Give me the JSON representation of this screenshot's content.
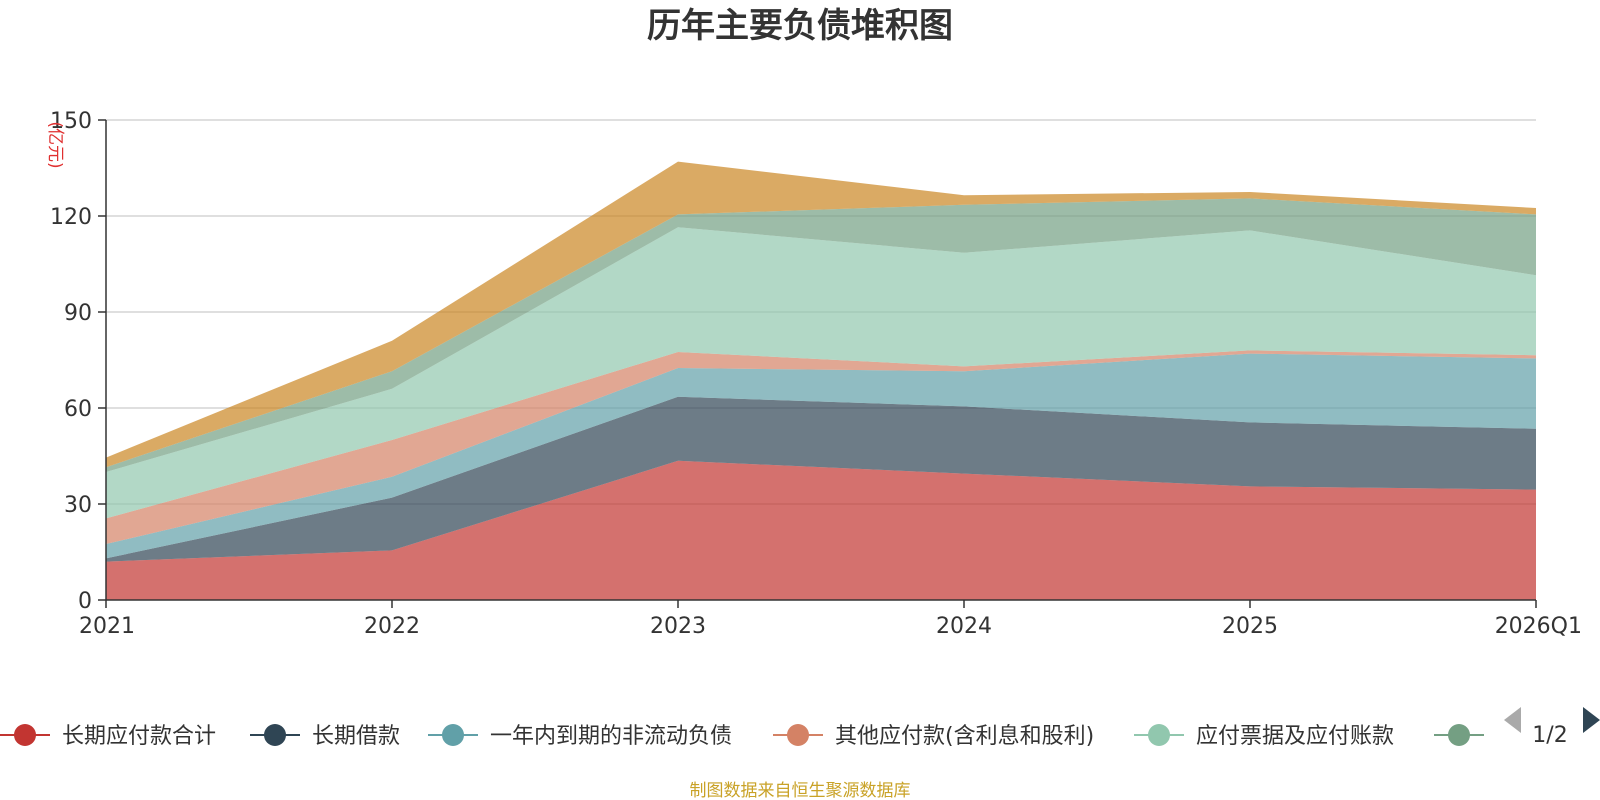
{
  "chart_data": {
    "type": "area",
    "stacked": true,
    "title": "历年主要负债堆积图",
    "ylabel": "(亿元)",
    "xlabel": "",
    "ylim": [
      0,
      150
    ],
    "y_ticks": [
      0,
      30,
      60,
      90,
      120,
      150
    ],
    "grid": true,
    "categories": [
      "2021",
      "2022",
      "2023",
      "2024",
      "2025",
      "2026Q1"
    ],
    "series": [
      {
        "name": "长期应付款合计",
        "color": "#c23531",
        "values": [
          12,
          15.5,
          43.5,
          39.5,
          35.5,
          34.5
        ]
      },
      {
        "name": "长期借款",
        "color": "#2f4554",
        "values": [
          1,
          16.5,
          20,
          21,
          20,
          19
        ]
      },
      {
        "name": "一年内到期的非流动负债",
        "color": "#61a0a8",
        "values": [
          4.5,
          6.5,
          9,
          11,
          21.5,
          22
        ]
      },
      {
        "name": "其他应付款(含利息和股利)",
        "color": "#d48265",
        "values": [
          8,
          11.5,
          5,
          1.5,
          1,
          1
        ]
      },
      {
        "name": "应付票据及应付账款",
        "color": "#91c7ae",
        "values": [
          14.5,
          16,
          39,
          35.5,
          37.5,
          25
        ]
      },
      {
        "name": "",
        "color": "#749f83",
        "values": [
          1.5,
          5.5,
          4,
          15,
          10,
          19
        ]
      },
      {
        "name": "",
        "color": "#ca8622",
        "values": [
          3,
          9.5,
          16.5,
          3,
          2,
          2
        ]
      }
    ],
    "legend": {
      "position": "bottom",
      "page": "1/2"
    },
    "source": "制图数据来自恒生聚源数据库"
  }
}
